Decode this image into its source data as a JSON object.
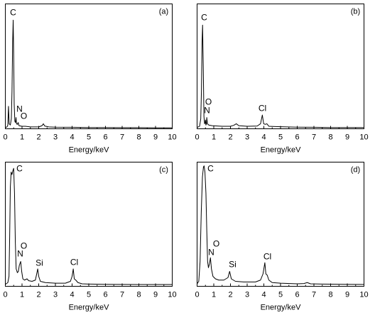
{
  "style": {
    "line_color": "#000000",
    "frame_color": "#000000",
    "background": "#ffffff"
  },
  "chart_data": [
    {
      "panel_label": "(a)",
      "type": "line",
      "xlabel": "Energy/keV",
      "xlim": [
        0,
        10
      ],
      "ylim": [
        0,
        100
      ],
      "grid": false,
      "xticks": [
        0,
        1,
        2,
        3,
        4,
        5,
        6,
        7,
        8,
        9,
        10
      ],
      "x": [
        0,
        0.1,
        0.15,
        0.19,
        0.23,
        0.3,
        0.36,
        0.4,
        0.44,
        0.47,
        0.5,
        0.53,
        0.57,
        0.61,
        0.64,
        0.67,
        0.72,
        0.77,
        0.82,
        1.0,
        1.2,
        1.5,
        2.0,
        2.2,
        2.28,
        2.36,
        2.6,
        3.0,
        4.0,
        5.0,
        6.0,
        7.0,
        8.0,
        9.0,
        10.0
      ],
      "y": [
        1.0,
        1.5,
        3,
        18,
        4,
        3,
        8,
        30,
        70,
        87,
        60,
        20,
        6,
        5,
        9,
        4,
        3.5,
        5,
        2.5,
        2,
        2,
        1.5,
        1.5,
        2.5,
        4,
        2.2,
        1.5,
        1.3,
        1.2,
        1.0,
        1.0,
        0.9,
        0.9,
        0.8,
        0.8
      ],
      "annotations": [
        {
          "text": "C"
        },
        {
          "text": "N"
        },
        {
          "text": "O"
        }
      ]
    },
    {
      "panel_label": "(b)",
      "type": "line",
      "xlabel": "Energy/keV",
      "xlim": [
        0,
        10
      ],
      "ylim": [
        0,
        100
      ],
      "grid": false,
      "xticks": [
        0,
        1,
        2,
        3,
        4,
        5,
        6,
        7,
        8,
        9,
        10
      ],
      "x": [
        0,
        0.15,
        0.22,
        0.26,
        0.3,
        0.33,
        0.37,
        0.41,
        0.45,
        0.48,
        0.5,
        0.53,
        0.56,
        0.58,
        0.62,
        0.7,
        0.9,
        1.5,
        2.0,
        2.2,
        2.35,
        2.5,
        3.0,
        3.6,
        3.8,
        3.91,
        3.99,
        4.08,
        4.18,
        4.3,
        5.0,
        6.0,
        7.0,
        8.0,
        9.0,
        10.0
      ],
      "y": [
        1,
        2,
        8,
        30,
        70,
        83,
        50,
        10,
        4,
        5,
        7,
        3,
        4,
        9,
        4,
        3,
        2.5,
        2,
        2,
        2.8,
        4,
        2.5,
        2,
        2.2,
        4,
        11,
        4,
        3.5,
        4,
        2,
        1.6,
        1.3,
        1.2,
        1,
        1,
        1
      ],
      "annotations": [
        {
          "text": "C"
        },
        {
          "text": "O"
        },
        {
          "text": "N"
        },
        {
          "text": "Cl"
        }
      ]
    },
    {
      "panel_label": "(c)",
      "type": "line",
      "xlabel": "Energy/keV",
      "xlim": [
        0,
        10
      ],
      "ylim": [
        0,
        100
      ],
      "grid": false,
      "xticks": [
        0,
        1,
        2,
        3,
        4,
        5,
        6,
        7,
        8,
        9,
        10
      ],
      "x": [
        0,
        0.15,
        0.22,
        0.26,
        0.3,
        0.35,
        0.4,
        0.45,
        0.5,
        0.55,
        0.6,
        0.65,
        0.72,
        0.78,
        0.84,
        0.92,
        0.98,
        1.05,
        1.15,
        1.3,
        1.4,
        1.6,
        1.8,
        1.88,
        1.94,
        2.0,
        2.1,
        2.4,
        3.0,
        3.6,
        3.9,
        4.0,
        4.07,
        4.13,
        4.22,
        4.35,
        4.6,
        5.0,
        6.0,
        7.0,
        8.0,
        9.0,
        10.0
      ],
      "y": [
        1.5,
        3,
        8,
        40,
        80,
        92,
        90,
        93,
        95,
        75,
        35,
        14,
        11,
        12,
        17,
        20,
        12,
        6,
        5,
        6,
        4.5,
        4,
        5,
        10,
        14,
        8,
        4,
        3,
        2.5,
        2.5,
        4,
        8,
        14,
        6,
        5,
        3,
        2,
        1.8,
        1.6,
        1.5,
        1.4,
        1.4,
        1.4
      ],
      "annotations": [
        {
          "text": "C"
        },
        {
          "text": "O"
        },
        {
          "text": "N"
        },
        {
          "text": "Si"
        },
        {
          "text": "Cl"
        }
      ]
    },
    {
      "panel_label": "(d)",
      "type": "line",
      "xlabel": "Energy/keV",
      "xlim": [
        0,
        10
      ],
      "ylim": [
        0,
        100
      ],
      "grid": false,
      "xticks": [
        0,
        1,
        2,
        3,
        4,
        5,
        6,
        7,
        8,
        9,
        10
      ],
      "x": [
        0,
        0.1,
        0.18,
        0.25,
        0.32,
        0.38,
        0.42,
        0.47,
        0.53,
        0.58,
        0.63,
        0.68,
        0.74,
        0.8,
        0.86,
        0.95,
        1.1,
        1.3,
        1.6,
        1.85,
        1.95,
        2.05,
        2.3,
        2.8,
        3.5,
        3.8,
        3.95,
        4.06,
        4.12,
        4.2,
        4.3,
        4.5,
        5.0,
        6.0,
        6.4,
        6.6,
        6.8,
        7.5,
        8.0,
        9.0,
        10.0
      ],
      "y": [
        2,
        4,
        20,
        60,
        88,
        96,
        97,
        92,
        75,
        45,
        20,
        15,
        18,
        23,
        14,
        8,
        6,
        5,
        5,
        7,
        12,
        6,
        4,
        3.5,
        3.5,
        5,
        10,
        19,
        10,
        9,
        5,
        3,
        2.5,
        2,
        2.2,
        3,
        2,
        1.8,
        1.7,
        1.6,
        1.5
      ],
      "annotations": [
        {
          "text": "C"
        },
        {
          "text": "O"
        },
        {
          "text": "N"
        },
        {
          "text": "Si"
        },
        {
          "text": "Cl"
        }
      ]
    }
  ]
}
